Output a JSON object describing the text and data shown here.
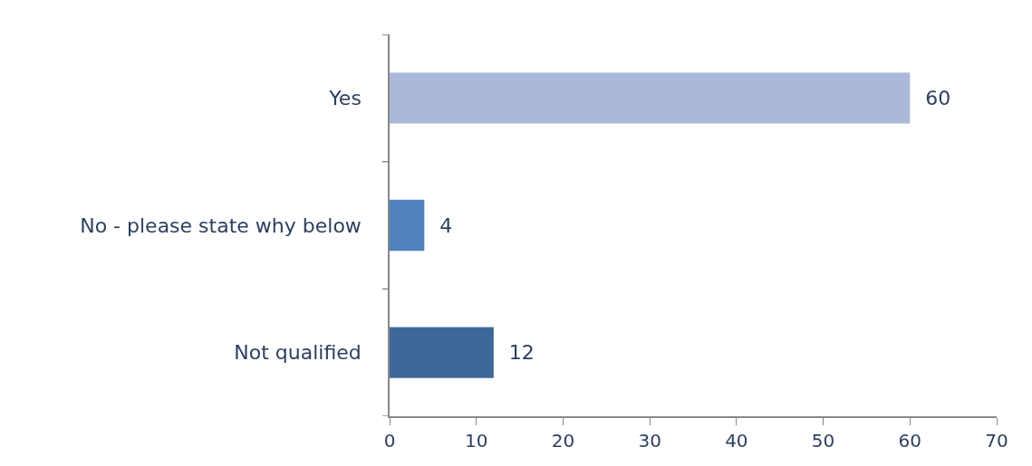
{
  "chart_data": {
    "type": "bar",
    "orientation": "horizontal",
    "categories": [
      "Yes",
      "No - please state why below",
      "Not qualified"
    ],
    "values": [
      60,
      4,
      12
    ],
    "colors": [
      "#aab9d8",
      "#4f81bd",
      "#3f6899"
    ],
    "xlim": [
      0,
      70
    ],
    "xticks": [
      0,
      10,
      20,
      30,
      40,
      50,
      60,
      70
    ],
    "data_labels": true
  }
}
